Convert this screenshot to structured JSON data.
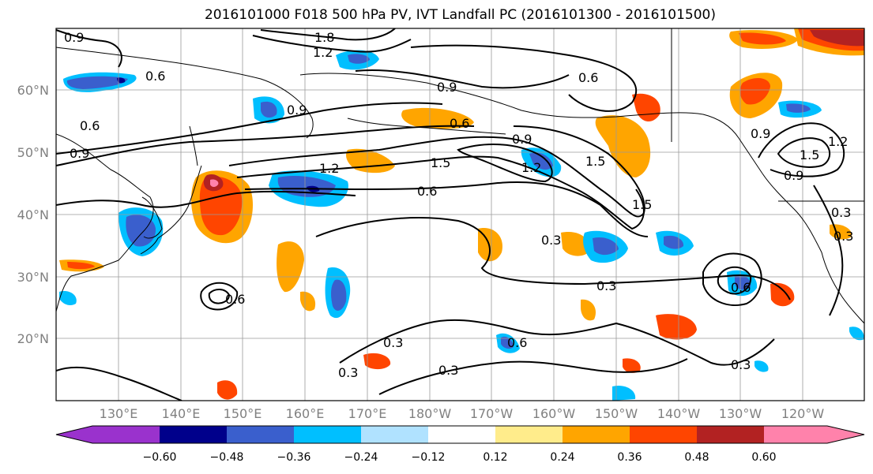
{
  "title": "2016101000 F018 500 hPa PV, IVT Landfall PC (2016101300 - 2016101500)",
  "latitude_labels": [
    "60°N",
    "50°N",
    "40°N",
    "30°N",
    "20°N"
  ],
  "longitude_labels": [
    "130°E",
    "140°E",
    "150°E",
    "160°E",
    "170°E",
    "180°W",
    "170°W",
    "160°W",
    "150°W",
    "140°W",
    "130°W",
    "120°W"
  ],
  "contour_labels": [
    "0.9",
    "1.8",
    "1.2",
    "0.6",
    "0.9",
    "0.6",
    "0.9",
    "0.6",
    "0.9",
    "0.6",
    "0.9",
    "1.2",
    "1.5",
    "1.5",
    "1.2",
    "0.6",
    "1.5",
    "0.9",
    "1.2",
    "1.5",
    "0.9",
    "0.3",
    "0.3",
    "0.3",
    "0.6",
    "0.3",
    "0.6",
    "0.6",
    "0.3",
    "0.3",
    "0.3",
    "0.3"
  ],
  "colorbar": {
    "ticks": [
      "−0.60",
      "−0.48",
      "−0.36",
      "−0.24",
      "−0.12",
      "0.12",
      "0.24",
      "0.36",
      "0.48",
      "0.60"
    ],
    "colors": [
      "#9a32cd",
      "#00008b",
      "#3a5fcd",
      "#00bfff",
      "#b0e2ff",
      "#ffffff",
      "#ffec8b",
      "#ffa500",
      "#ff4500",
      "#b22222",
      "#ff82ab"
    ]
  }
}
